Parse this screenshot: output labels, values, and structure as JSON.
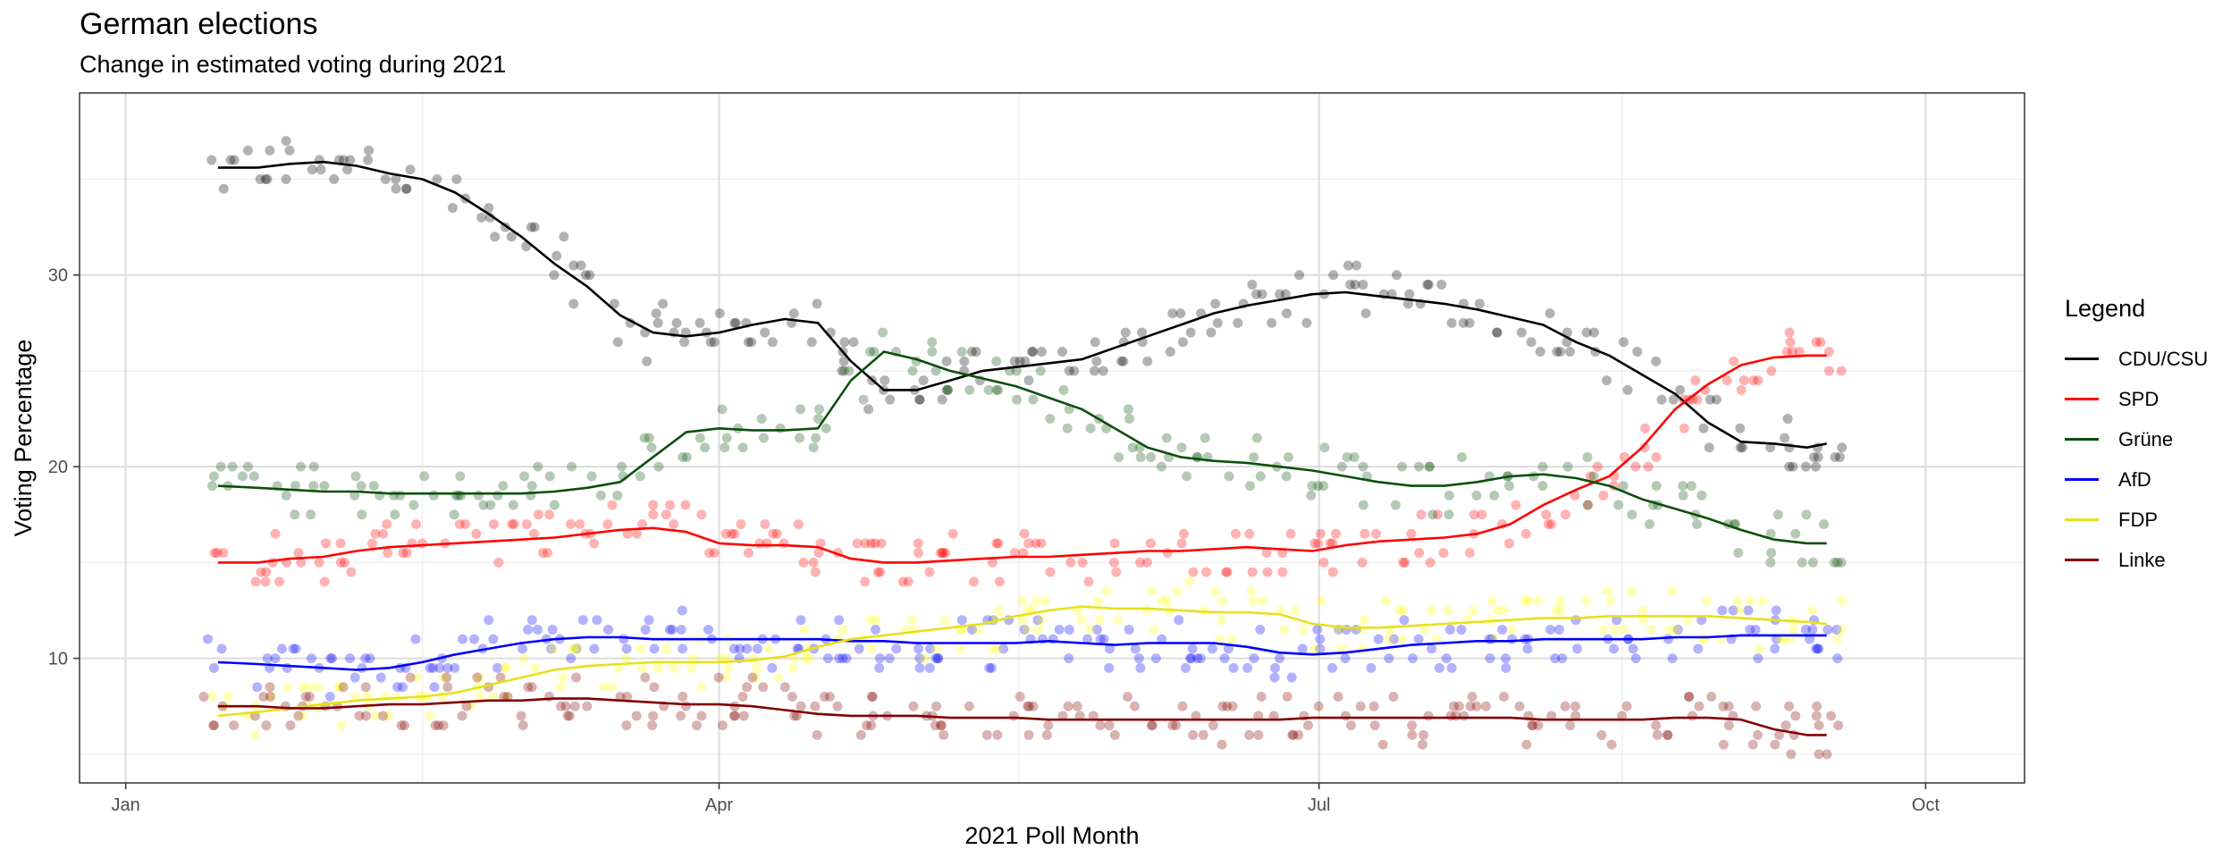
{
  "chart_data": {
    "type": "line",
    "title": "German elections",
    "subtitle": "Change in estimated voting during 2021",
    "xlabel": "2021 Poll Month",
    "ylabel": "Voting Percentage",
    "x_unit": "day of year 2021",
    "xlim": [
      -7,
      288
    ],
    "ylim": [
      3.5,
      39.5
    ],
    "x_ticks": [
      {
        "x": 0,
        "label": "Jan"
      },
      {
        "x": 90,
        "label": "Apr"
      },
      {
        "x": 181,
        "label": "Jul"
      },
      {
        "x": 273,
        "label": "Oct"
      }
    ],
    "y_ticks": [
      10,
      20,
      30
    ],
    "grid": true,
    "legend_title": "Legend",
    "legend_position": "right",
    "series": [
      {
        "name": "CDU/CSU",
        "color": "#000000",
        "line_x": [
          14,
          20,
          25,
          30,
          35,
          40,
          45,
          50,
          55,
          60,
          65,
          70,
          75,
          80,
          85,
          90,
          95,
          100,
          105,
          110,
          115,
          120,
          125,
          130,
          135,
          140,
          145,
          150,
          155,
          160,
          165,
          170,
          175,
          180,
          185,
          190,
          195,
          200,
          205,
          210,
          215,
          220,
          225,
          230,
          235,
          240,
          245,
          250,
          255,
          258
        ],
        "line_y": [
          35.6,
          35.6,
          35.8,
          35.9,
          35.7,
          35.3,
          35.0,
          34.3,
          33.2,
          32.0,
          30.6,
          29.4,
          27.9,
          27.0,
          26.8,
          27.0,
          27.4,
          27.7,
          27.5,
          25.5,
          24.0,
          24.0,
          24.5,
          25.0,
          25.2,
          25.4,
          25.6,
          26.2,
          26.8,
          27.4,
          28.0,
          28.4,
          28.7,
          29.0,
          29.1,
          28.9,
          28.7,
          28.5,
          28.2,
          27.8,
          27.4,
          26.5,
          25.8,
          24.8,
          23.8,
          22.3,
          21.3,
          21.2,
          21.0,
          21.2
        ]
      },
      {
        "name": "SPD",
        "color": "#ff0000",
        "line_x": [
          14,
          20,
          25,
          30,
          35,
          40,
          45,
          50,
          55,
          60,
          65,
          70,
          75,
          80,
          85,
          90,
          95,
          100,
          105,
          110,
          115,
          120,
          125,
          130,
          135,
          140,
          145,
          150,
          155,
          160,
          165,
          170,
          175,
          180,
          185,
          190,
          195,
          200,
          205,
          210,
          215,
          220,
          225,
          230,
          235,
          240,
          245,
          250,
          255,
          258
        ],
        "line_y": [
          15.0,
          15.0,
          15.2,
          15.3,
          15.6,
          15.8,
          15.9,
          16.0,
          16.1,
          16.2,
          16.3,
          16.5,
          16.7,
          16.8,
          16.6,
          16.0,
          15.9,
          15.9,
          15.8,
          15.2,
          15.0,
          15.0,
          15.1,
          15.2,
          15.3,
          15.3,
          15.4,
          15.5,
          15.6,
          15.6,
          15.7,
          15.8,
          15.7,
          15.6,
          15.9,
          16.1,
          16.2,
          16.3,
          16.5,
          17.0,
          18.0,
          18.8,
          19.5,
          21.0,
          23.0,
          24.3,
          25.3,
          25.7,
          25.8,
          25.8
        ]
      },
      {
        "name": "Grüne",
        "color": "#0b4f0b",
        "line_x": [
          14,
          20,
          25,
          30,
          35,
          40,
          45,
          50,
          55,
          60,
          65,
          70,
          75,
          80,
          85,
          90,
          95,
          100,
          105,
          110,
          115,
          120,
          125,
          130,
          135,
          140,
          145,
          150,
          155,
          160,
          165,
          170,
          175,
          180,
          185,
          190,
          195,
          200,
          205,
          210,
          215,
          220,
          225,
          230,
          235,
          240,
          245,
          250,
          255,
          258
        ],
        "line_y": [
          19.0,
          18.9,
          18.8,
          18.7,
          18.7,
          18.6,
          18.6,
          18.6,
          18.6,
          18.6,
          18.7,
          18.9,
          19.2,
          20.5,
          21.8,
          22.0,
          21.9,
          21.9,
          22.0,
          24.5,
          26.0,
          25.6,
          25.0,
          24.6,
          24.2,
          23.6,
          23.0,
          22.0,
          21.0,
          20.5,
          20.3,
          20.2,
          20.0,
          19.8,
          19.5,
          19.2,
          19.0,
          19.0,
          19.2,
          19.5,
          19.6,
          19.4,
          19.0,
          18.3,
          17.8,
          17.3,
          16.7,
          16.2,
          16.0,
          16.0
        ]
      },
      {
        "name": "AfD",
        "color": "#0000ff",
        "line_x": [
          14,
          20,
          25,
          30,
          35,
          40,
          45,
          50,
          55,
          60,
          65,
          70,
          75,
          80,
          85,
          90,
          95,
          100,
          105,
          110,
          115,
          120,
          125,
          130,
          135,
          140,
          145,
          150,
          155,
          160,
          165,
          170,
          175,
          180,
          185,
          190,
          195,
          200,
          205,
          210,
          215,
          220,
          225,
          230,
          235,
          240,
          245,
          250,
          255,
          258
        ],
        "line_y": [
          9.8,
          9.7,
          9.6,
          9.5,
          9.4,
          9.5,
          9.8,
          10.2,
          10.5,
          10.8,
          11.0,
          11.1,
          11.1,
          11.0,
          11.0,
          11.0,
          11.0,
          11.0,
          11.0,
          10.9,
          10.9,
          10.8,
          10.8,
          10.8,
          10.8,
          10.9,
          10.8,
          10.7,
          10.8,
          10.8,
          10.8,
          10.6,
          10.3,
          10.2,
          10.3,
          10.5,
          10.7,
          10.8,
          10.9,
          10.9,
          11.0,
          11.0,
          11.0,
          11.0,
          11.1,
          11.1,
          11.2,
          11.2,
          11.2,
          11.2
        ]
      },
      {
        "name": "FDP",
        "color": "#ffff00",
        "line_x": [
          14,
          20,
          25,
          30,
          35,
          40,
          45,
          50,
          55,
          60,
          65,
          70,
          75,
          80,
          85,
          90,
          95,
          100,
          105,
          110,
          115,
          120,
          125,
          130,
          135,
          140,
          145,
          150,
          155,
          160,
          165,
          170,
          175,
          180,
          185,
          190,
          195,
          200,
          205,
          210,
          215,
          220,
          225,
          230,
          235,
          240,
          245,
          250,
          255,
          258
        ],
        "line_y": [
          7.0,
          7.2,
          7.4,
          7.6,
          7.8,
          7.9,
          8.0,
          8.2,
          8.6,
          9.0,
          9.4,
          9.6,
          9.7,
          9.8,
          9.8,
          9.8,
          9.9,
          10.1,
          10.6,
          11.0,
          11.2,
          11.4,
          11.6,
          11.8,
          12.2,
          12.5,
          12.7,
          12.6,
          12.6,
          12.5,
          12.4,
          12.4,
          12.3,
          11.8,
          11.6,
          11.6,
          11.7,
          11.8,
          11.9,
          12.0,
          12.1,
          12.1,
          12.2,
          12.2,
          12.2,
          12.2,
          12.1,
          12.0,
          11.9,
          11.8
        ]
      },
      {
        "name": "Linke",
        "color": "#800000",
        "line_x": [
          14,
          20,
          25,
          30,
          35,
          40,
          45,
          50,
          55,
          60,
          65,
          70,
          75,
          80,
          85,
          90,
          95,
          100,
          105,
          110,
          115,
          120,
          125,
          130,
          135,
          140,
          145,
          150,
          155,
          160,
          165,
          170,
          175,
          180,
          185,
          190,
          195,
          200,
          205,
          210,
          215,
          220,
          225,
          230,
          235,
          240,
          245,
          250,
          255,
          258
        ],
        "line_y": [
          7.5,
          7.5,
          7.4,
          7.4,
          7.5,
          7.6,
          7.6,
          7.7,
          7.8,
          7.8,
          7.9,
          7.9,
          7.8,
          7.7,
          7.6,
          7.6,
          7.5,
          7.3,
          7.1,
          7.0,
          7.0,
          7.0,
          6.9,
          6.9,
          6.9,
          6.8,
          6.8,
          6.8,
          6.8,
          6.8,
          6.8,
          6.8,
          6.8,
          6.9,
          6.9,
          6.9,
          6.9,
          6.9,
          6.9,
          6.9,
          6.8,
          6.8,
          6.8,
          6.8,
          6.9,
          6.9,
          6.8,
          6.3,
          6.0,
          6.0
        ]
      }
    ]
  }
}
